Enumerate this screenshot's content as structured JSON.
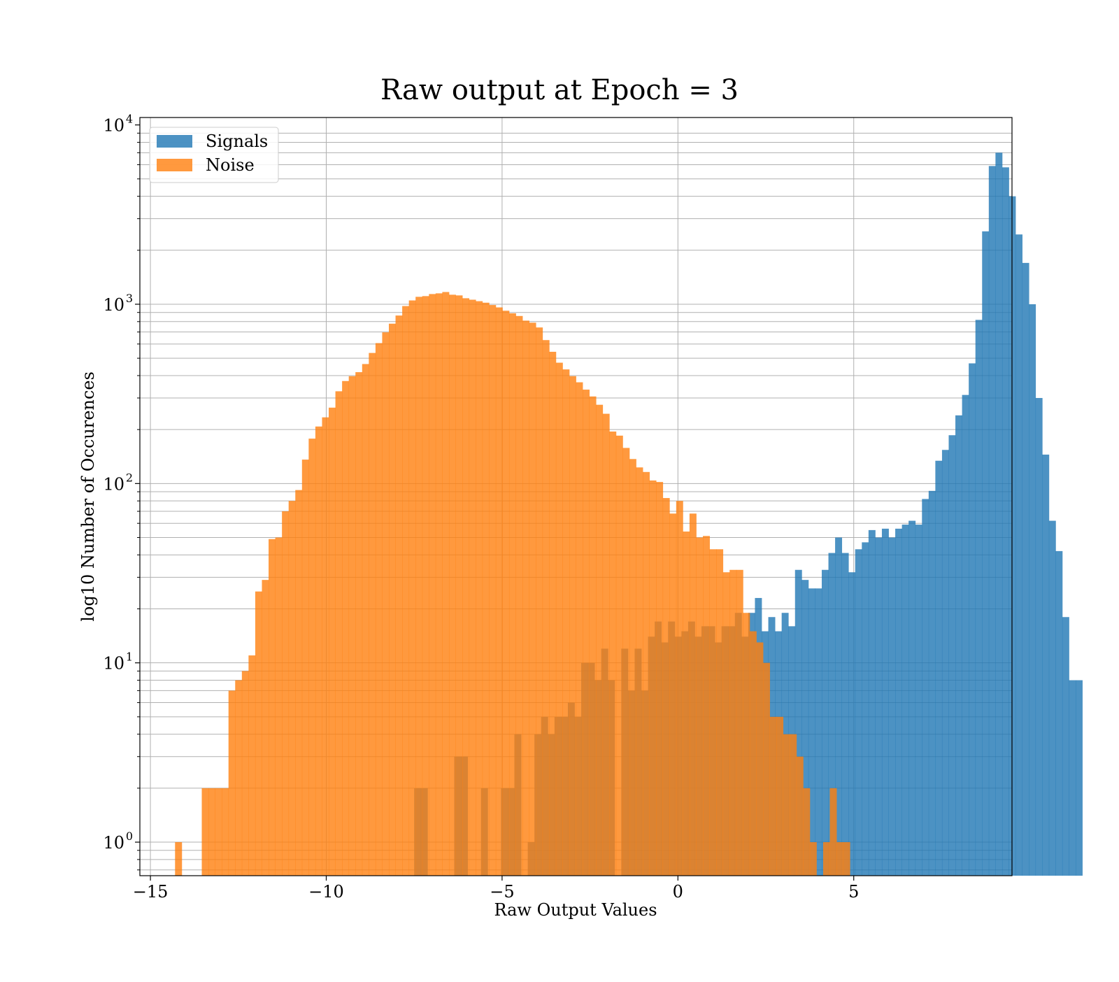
{
  "chart_data": {
    "type": "bar",
    "title": "Raw output at Epoch = 3",
    "xlabel": "Raw Output Values",
    "ylabel": "log10 Number of Occurences",
    "xlim": [
      -15.3,
      9.5
    ],
    "ylim": [
      0.65,
      11000
    ],
    "yscale": "log",
    "grid": true,
    "legend": "top-left",
    "x_ticks": [
      {
        "value": -15,
        "label": "−15"
      },
      {
        "value": -10,
        "label": "−10"
      },
      {
        "value": -5,
        "label": "−5"
      },
      {
        "value": 0,
        "label": "0"
      },
      {
        "value": 5,
        "label": "5"
      }
    ],
    "y_ticks": [
      {
        "value": 1,
        "base": "10",
        "exp": "0"
      },
      {
        "value": 10,
        "base": "10",
        "exp": "1"
      },
      {
        "value": 100,
        "base": "10",
        "exp": "2"
      },
      {
        "value": 1000,
        "base": "10",
        "exp": "3"
      },
      {
        "value": 10000,
        "base": "10",
        "exp": "4"
      }
    ],
    "series": [
      {
        "name": "Signals",
        "color": "#1f77b4",
        "opacity": 0.8,
        "bin_start": -7.5,
        "bin_width": 0.19,
        "values": [
          2,
          2,
          0,
          0,
          0,
          0,
          3,
          3,
          0,
          0,
          2,
          0,
          0,
          2,
          2,
          4,
          0,
          1,
          4,
          5,
          4,
          5,
          5,
          6,
          5,
          10,
          10,
          8,
          12,
          8,
          0,
          12,
          7,
          12,
          7,
          14,
          17,
          13,
          17,
          14,
          15,
          17,
          14,
          16,
          16,
          13,
          16,
          16,
          19,
          14,
          19,
          23,
          15,
          18,
          15,
          19,
          16,
          33,
          29,
          26,
          26,
          33,
          41,
          50,
          41,
          32,
          43,
          47,
          55,
          50,
          56,
          50,
          56,
          59,
          62,
          59,
          82,
          91,
          134,
          154,
          186,
          240,
          312,
          468,
          818,
          2550,
          5900,
          7000,
          5800,
          4000,
          2450,
          1700,
          1000,
          300,
          145,
          62,
          42,
          18,
          8,
          8
        ]
      },
      {
        "name": "Noise",
        "color": "#ff7f0e",
        "opacity": 0.8,
        "bin_start": -14.3,
        "bin_width": 0.19,
        "values": [
          1,
          0,
          0,
          0,
          2,
          2,
          2,
          2,
          7,
          8,
          9,
          11,
          25,
          29,
          49,
          50,
          70,
          80,
          92,
          136,
          178,
          208,
          234,
          265,
          327,
          373,
          397,
          418,
          464,
          535,
          607,
          697,
          779,
          865,
          977,
          1050,
          1100,
          1110,
          1140,
          1150,
          1170,
          1130,
          1120,
          1080,
          1060,
          1040,
          1020,
          990,
          960,
          920,
          890,
          860,
          810,
          789,
          742,
          631,
          543,
          472,
          433,
          397,
          367,
          334,
          306,
          275,
          245,
          195,
          185,
          158,
          137,
          123,
          116,
          104,
          102,
          83,
          68,
          80,
          54,
          68,
          50,
          51,
          43,
          43,
          32,
          33,
          33,
          19,
          15,
          13,
          10,
          5,
          5,
          4,
          4,
          3,
          2,
          1,
          0,
          1,
          2,
          1,
          1
        ]
      }
    ]
  }
}
